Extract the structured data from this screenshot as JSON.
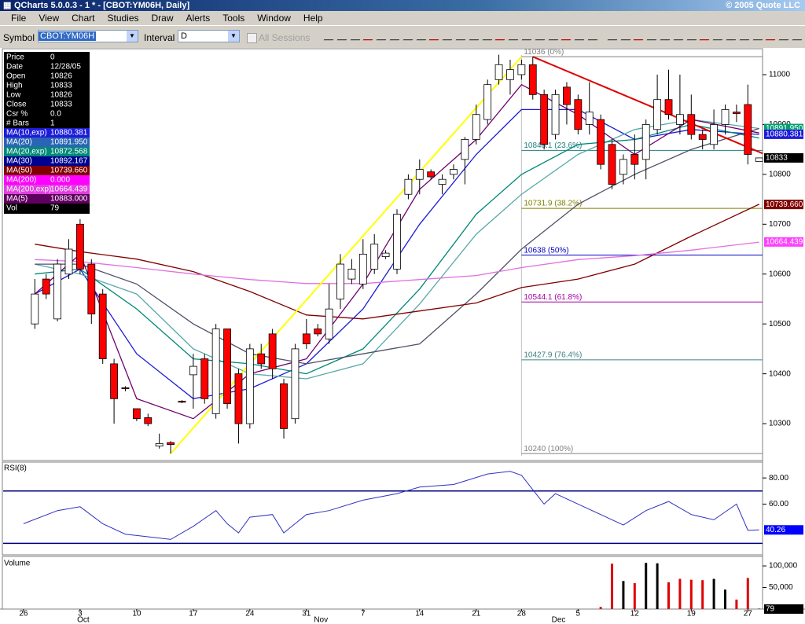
{
  "window": {
    "title": "QCharts 5.0.0.3 - 1 * - [CBOT:YM06H, Daily]",
    "copyright": "© 2005 Quote LLC"
  },
  "menu": [
    "File",
    "View",
    "Chart",
    "Studies",
    "Draw",
    "Alerts",
    "Tools",
    "Window",
    "Help"
  ],
  "toolbar": {
    "symbol_label": "Symbol",
    "symbol": "CBOT:YM06H",
    "interval_label": "Interval",
    "interval": "D",
    "sessions": "All Sessions"
  },
  "data_window": [
    {
      "label": "Price",
      "value": "0"
    },
    {
      "label": "Date",
      "value": "12/28/05"
    },
    {
      "label": "Open",
      "value": "10826"
    },
    {
      "label": "High",
      "value": "10833"
    },
    {
      "label": "Low",
      "value": "10826"
    },
    {
      "label": "Close",
      "value": "10833"
    },
    {
      "label": "Csr %",
      "value": "0.0"
    },
    {
      "label": "# Bars",
      "value": "1"
    },
    {
      "label": "MA(10,exp)",
      "value": "10880.381",
      "color": "#1c1cd8"
    },
    {
      "label": "MA(20)",
      "value": "10891.950",
      "color": "#2a64b4"
    },
    {
      "label": "MA(20,exp)",
      "value": "10872.568",
      "color": "#008878"
    },
    {
      "label": "MA(30)",
      "value": "10892.167",
      "color": "#000090"
    },
    {
      "label": "MA(50)",
      "value": "10739.660",
      "color": "#800000"
    },
    {
      "label": "MA(200)",
      "value": "0.000",
      "color": "#ff00ff"
    },
    {
      "label": "MA(200,exp)",
      "value": "10664.439",
      "color": "#e040e0"
    },
    {
      "label": "MA(5)",
      "value": "10883.000",
      "color": "#600060"
    },
    {
      "label": "Vol",
      "value": "79"
    }
  ],
  "chart_data": [
    {
      "type": "candlestick",
      "ylim": [
        10226,
        11052
      ],
      "xlim": [
        -1.8,
        65.3
      ],
      "yticks": [
        11000,
        10900,
        10800,
        10700,
        10600,
        10500,
        10400,
        10300
      ],
      "xticks": [
        {
          "value": 0,
          "label": "26"
        },
        {
          "value": 5,
          "label": "3"
        },
        {
          "value": 10,
          "label": "10"
        },
        {
          "value": 15,
          "label": "17"
        },
        {
          "value": 20,
          "label": "24"
        },
        {
          "value": 25,
          "label": "31"
        },
        {
          "value": 30,
          "label": "7"
        },
        {
          "value": 35,
          "label": "14"
        },
        {
          "value": 40,
          "label": "21"
        },
        {
          "value": 44,
          "label": "28"
        },
        {
          "value": 49,
          "label": "5"
        },
        {
          "value": 54,
          "label": "12"
        },
        {
          "value": 59,
          "label": "19"
        },
        {
          "value": 64,
          "label": "27"
        }
      ],
      "months": [
        {
          "value": 5,
          "label": "Oct"
        },
        {
          "value": 26,
          "label": "Nov"
        },
        {
          "value": 47,
          "label": "Dec"
        }
      ],
      "open": [
        null,
        10500,
        10590,
        10510,
        10600,
        10700,
        10620,
        10560,
        10420,
        10372,
        10330,
        10312,
        10255,
        10262,
        10345,
        10398,
        10430,
        10320,
        10490,
        10400,
        10300,
        10440,
        10480,
        10380,
        10310,
        10480,
        10490,
        10470,
        10550,
        10590,
        10580,
        10610,
        10635,
        10610,
        10760,
        10790,
        10805,
        10780,
        10800,
        10830,
        10870,
        10910,
        10990,
        10990,
        11000,
        11020,
        10960,
        10880,
        10975,
        10950,
        10900,
        10910,
        10860,
        10800,
        10840,
        10830,
        10890,
        10950,
        10900,
        10920,
        10880,
        10860,
        10900,
        10925,
        10940,
        10826
      ],
      "high": [
        null,
        10590,
        10600,
        10630,
        10670,
        10710,
        10630,
        10570,
        10430,
        10375,
        10330,
        10320,
        10280,
        10265,
        10347,
        10440,
        10440,
        10500,
        10490,
        10410,
        10460,
        10460,
        10490,
        10390,
        10460,
        10510,
        10500,
        10580,
        10640,
        10630,
        10670,
        10680,
        10648,
        10730,
        10800,
        10830,
        10810,
        10800,
        10820,
        10875,
        10940,
        10990,
        11040,
        11030,
        11030,
        11036,
        10970,
        10970,
        10985,
        10960,
        10985,
        10920,
        10870,
        10840,
        10880,
        10910,
        11000,
        11010,
        11000,
        10960,
        10890,
        10930,
        10940,
        10940,
        10980,
        10833
      ],
      "low": [
        null,
        10490,
        10550,
        10505,
        10590,
        10600,
        10500,
        10420,
        10300,
        10365,
        10305,
        10295,
        10250,
        10240,
        10341,
        10330,
        10340,
        10310,
        10330,
        10260,
        10290,
        10410,
        10390,
        10270,
        10300,
        10450,
        10475,
        10460,
        10530,
        10580,
        10570,
        10600,
        10630,
        10600,
        10750,
        10760,
        10790,
        10760,
        10790,
        10780,
        10860,
        10900,
        10980,
        10960,
        10990,
        10950,
        10850,
        10870,
        10900,
        10880,
        10880,
        10810,
        10770,
        10780,
        10790,
        10790,
        10880,
        10910,
        10880,
        10870,
        10850,
        10850,
        10880,
        10905,
        10820,
        10826
      ],
      "close": [
        null,
        10560,
        10560,
        10620,
        10650,
        10610,
        10520,
        10430,
        10350,
        10370,
        10310,
        10300,
        10260,
        10258,
        10343,
        10415,
        10350,
        10490,
        10340,
        10300,
        10450,
        10420,
        10410,
        10290,
        10450,
        10460,
        10480,
        10530,
        10620,
        10610,
        10640,
        10660,
        10642,
        10720,
        10790,
        10810,
        10795,
        10790,
        10810,
        10870,
        10920,
        10980,
        11020,
        11010,
        11020,
        10960,
        10860,
        10960,
        10940,
        10890,
        10925,
        10820,
        10780,
        10830,
        10820,
        10900,
        10950,
        10920,
        10920,
        10880,
        10870,
        10900,
        10930,
        10922,
        10840,
        10833
      ],
      "up_color": "#ffffff",
      "down_color": "#ff0000",
      "series": [
        {
          "color": "#1c1cd8",
          "x": [
            1,
            5,
            10,
            15,
            20,
            25,
            30,
            35,
            40,
            44,
            49,
            54,
            59,
            65
          ],
          "values": [
            10560,
            10610,
            10440,
            10350,
            10370,
            10420,
            10530,
            10700,
            10840,
            10930,
            10930,
            10870,
            10890,
            10880
          ]
        },
        {
          "color": "#5aa8a8",
          "x": [
            1,
            5,
            10,
            15,
            20,
            25,
            30,
            35,
            40,
            44,
            49,
            54,
            59,
            65
          ],
          "values": [
            10620,
            10600,
            10560,
            10450,
            10400,
            10390,
            10420,
            10540,
            10680,
            10760,
            10840,
            10890,
            10910,
            10892
          ]
        },
        {
          "color": "#008878",
          "x": [
            1,
            5,
            10,
            15,
            20,
            25,
            30,
            35,
            40,
            44,
            49,
            54,
            59,
            65
          ],
          "values": [
            10600,
            10610,
            10530,
            10430,
            10420,
            10400,
            10450,
            10570,
            10720,
            10800,
            10860,
            10870,
            10900,
            10873
          ]
        },
        {
          "color": "#505068",
          "x": [
            1,
            5,
            10,
            15,
            20,
            25,
            30,
            35,
            40,
            44,
            49,
            54,
            59,
            65
          ],
          "values": [
            10620,
            10620,
            10580,
            10500,
            10440,
            10420,
            10440,
            10460,
            10560,
            10650,
            10740,
            10800,
            10850,
            10892
          ]
        },
        {
          "color": "#800000",
          "x": [
            1,
            5,
            10,
            15,
            20,
            25,
            30,
            35,
            40,
            44,
            49,
            54,
            59,
            65
          ],
          "values": [
            10660,
            10645,
            10630,
            10605,
            10565,
            10518,
            10510,
            10526,
            10542,
            10573,
            10590,
            10620,
            10676,
            10740
          ]
        },
        {
          "color": "#e070e0",
          "x": [
            1,
            5,
            10,
            15,
            20,
            25,
            30,
            35,
            40,
            44,
            49,
            54,
            59,
            65
          ],
          "values": [
            10629,
            10625,
            10613,
            10600,
            10589,
            10581,
            10581,
            10589,
            10597,
            10613,
            10629,
            10637,
            10648,
            10664
          ]
        },
        {
          "color": "#700070",
          "x": [
            1,
            5,
            10,
            15,
            20,
            25,
            30,
            35,
            40,
            44,
            49,
            54,
            59,
            65
          ],
          "values": [
            10560,
            10640,
            10350,
            10310,
            10400,
            10430,
            10580,
            10770,
            10870,
            10980,
            10920,
            10840,
            10910,
            10883
          ]
        }
      ],
      "trendlines": [
        {
          "color": "#ffff00",
          "points": [
            [
              13,
              10240
            ],
            [
              44,
              11036
            ]
          ]
        },
        {
          "color": "#e00000",
          "points": [
            [
              45,
              11036
            ],
            [
              65.3,
              10842
            ]
          ]
        }
      ],
      "fib_levels": [
        {
          "value": 11036,
          "label": "11036 (0%)",
          "color": "#808080"
        },
        {
          "value": 10848.1,
          "label": "10848.1 (23.6%)",
          "color": "#208080"
        },
        {
          "value": 10731.9,
          "label": "10731.9 (38.2%)",
          "color": "#808000"
        },
        {
          "value": 10638,
          "label": "10638 (50%)",
          "color": "#0000c0"
        },
        {
          "value": 10544.1,
          "label": "10544.1 (61.8%)",
          "color": "#a000a0"
        },
        {
          "value": 10427.9,
          "label": "10427.9 (76.4%)",
          "color": "#408080"
        },
        {
          "value": 10240,
          "label": "10240 (100%)",
          "color": "#808080"
        }
      ],
      "tags": [
        {
          "value": 10891.95,
          "label": "10891.950",
          "color": "#00a070"
        },
        {
          "value": 10880.381,
          "label": "10880.381",
          "color": "#1c1cd8"
        },
        {
          "value": 10739.66,
          "label": "10739.660",
          "color": "#800000"
        },
        {
          "value": 10664.439,
          "label": "10664.439",
          "color": "#ff40ff"
        }
      ],
      "last_color": "#000000"
    },
    {
      "type": "line",
      "title": "RSI(8)",
      "ylim": [
        21.2,
        92.1
      ],
      "yticks": [
        {
          "value": 80,
          "label": "80.00"
        },
        {
          "value": 60,
          "label": "60.00"
        }
      ],
      "bands": [
        70,
        30
      ],
      "band_color": "#000080",
      "color": "#3030c0",
      "x": [
        0,
        3,
        5,
        7,
        9,
        11,
        13,
        15,
        17,
        18,
        19,
        20,
        22,
        23,
        25,
        27,
        30,
        33,
        35,
        38,
        41,
        43,
        44,
        46,
        47,
        49,
        51,
        53,
        55,
        57,
        59,
        61,
        63,
        64,
        65
      ],
      "values": [
        45,
        55,
        58,
        45,
        37,
        35,
        33,
        43,
        55,
        45,
        38,
        50,
        52,
        38,
        52,
        55,
        63,
        68,
        73,
        75,
        83,
        85,
        82,
        60,
        68,
        60,
        52,
        44,
        55,
        62,
        52,
        48,
        60,
        40,
        40.26
      ],
      "last_color": "#0000ff"
    },
    {
      "type": "bar",
      "title": "Volume",
      "ylim": [
        0,
        122000
      ],
      "yticks": [
        {
          "value": 100000,
          "label": "100,000"
        },
        {
          "value": 50000,
          "label": "50,000"
        }
      ],
      "x": [
        51,
        52,
        53,
        54,
        55,
        56,
        57,
        58,
        59,
        60,
        61,
        62,
        63,
        64,
        65
      ],
      "values": [
        5000,
        105000,
        65000,
        60000,
        107000,
        106000,
        62000,
        70000,
        68000,
        67000,
        70000,
        45000,
        22000,
        72000,
        79
      ],
      "colors": [
        "#e00000",
        "#e00000",
        "#000000",
        "#e00000",
        "#000000",
        "#000000",
        "#e00000",
        "#e00000",
        "#e00000",
        "#e00000",
        "#000000",
        "#000000",
        "#e00000",
        "#e00000",
        "#000000"
      ],
      "last_color": "#000000"
    }
  ]
}
